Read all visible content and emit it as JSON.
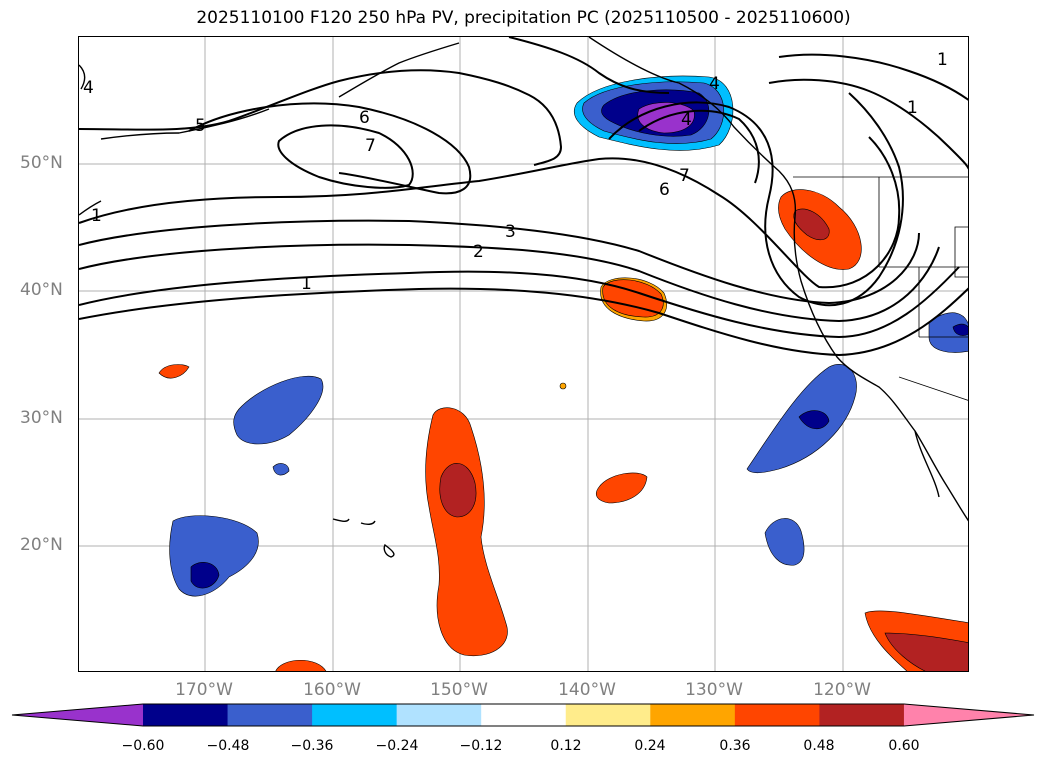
{
  "title": "2025110100 F120 250 hPa PV, precipitation PC (2025110500 - 2025110600)",
  "map": {
    "lon_ticks": [
      "170°W",
      "160°W",
      "150°W",
      "140°W",
      "130°W",
      "120°W"
    ],
    "lat_ticks": [
      "50°N",
      "40°N",
      "30°N",
      "20°N"
    ],
    "contour_labels": [
      "4",
      "5",
      "6",
      "7",
      "4",
      "3",
      "2",
      "1",
      "1",
      "7",
      "6",
      "4",
      "1",
      "1"
    ]
  },
  "colorbar": {
    "ticks": [
      "−0.60",
      "−0.48",
      "−0.36",
      "−0.24",
      "−0.12",
      "0.12",
      "0.24",
      "0.36",
      "0.48",
      "0.60"
    ],
    "colors": [
      "#9932cc",
      "#00008b",
      "#3a5fcd",
      "#00bfff",
      "#b0e2ff",
      "#ffffff",
      "#ffec8b",
      "#ffa500",
      "#ff4500",
      "#b22222",
      "#ff82ab"
    ]
  }
}
